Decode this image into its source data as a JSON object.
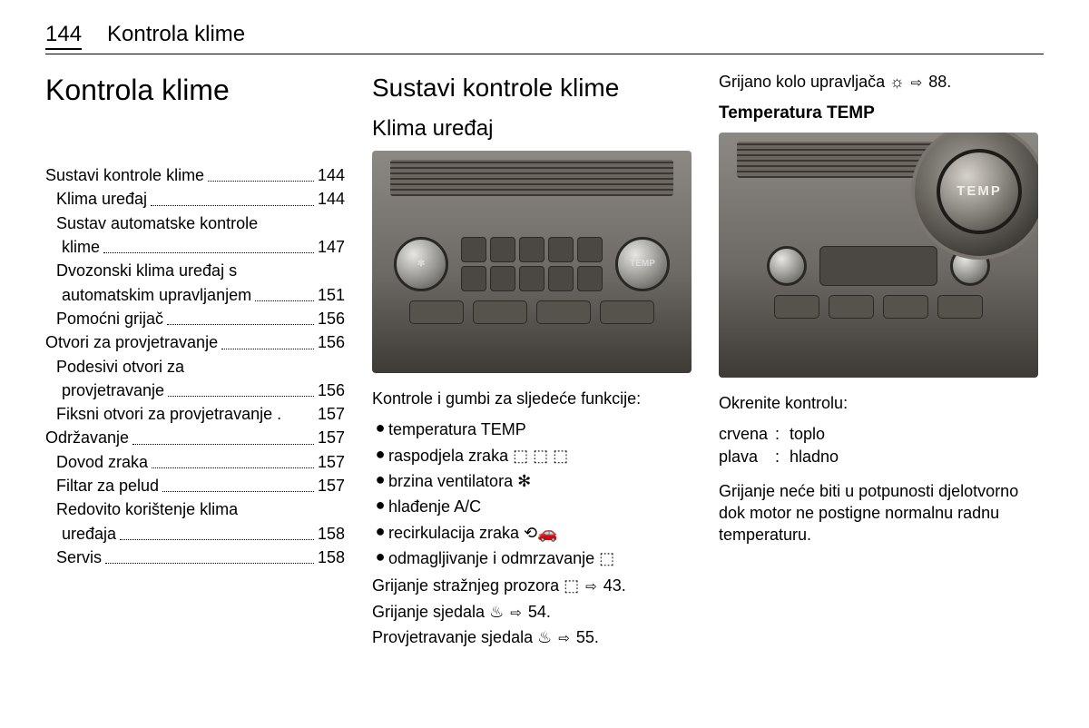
{
  "header": {
    "page_number": "144",
    "section": "Kontrola klime"
  },
  "col1": {
    "title": "Kontrola klime",
    "toc": [
      {
        "type": "main",
        "label": "Sustavi kontrole klime",
        "page": "144"
      },
      {
        "type": "sub",
        "label": "Klima uređaj",
        "page": "144"
      },
      {
        "type": "sub",
        "label": "Sustav automatske kontrole",
        "label2": "klime",
        "page": "147"
      },
      {
        "type": "sub",
        "label": "Dvozonski klima uređaj s",
        "label2": "automatskim upravljanjem",
        "page": "151"
      },
      {
        "type": "sub",
        "label": "Pomoćni grijač",
        "page": "156"
      },
      {
        "type": "main",
        "label": "Otvori za provjetravanje",
        "page": "156"
      },
      {
        "type": "sub",
        "label": "Podesivi otvori za",
        "label2": "provjetravanje",
        "page": "156"
      },
      {
        "type": "sub",
        "label": "Fiksni otvori za provjetravanje",
        "page": "157",
        "tight": true
      },
      {
        "type": "main",
        "label": "Održavanje",
        "page": "157"
      },
      {
        "type": "sub",
        "label": "Dovod zraka",
        "page": "157"
      },
      {
        "type": "sub",
        "label": "Filtar za pelud",
        "page": "157"
      },
      {
        "type": "sub",
        "label": "Redovito korištenje klima",
        "label2": "uređaja",
        "page": "158"
      },
      {
        "type": "sub",
        "label": "Servis",
        "page": "158"
      }
    ]
  },
  "col2": {
    "title": "Sustavi kontrole klime",
    "subtitle": "Klima uređaj",
    "intro": "Kontrole i gumbi za sljedeće funkcije:",
    "bullets": [
      {
        "text": "temperatura TEMP",
        "icon": ""
      },
      {
        "text": "raspodjela zraka",
        "icon": "⬚ ⬚ ⬚"
      },
      {
        "text": "brzina ventilatora",
        "icon": "✻"
      },
      {
        "text": "hlađenje A/C",
        "icon": ""
      },
      {
        "text": "recirkulacija zraka",
        "icon": "⟲🚗"
      },
      {
        "text": "odmagljivanje i odmrzavanje",
        "icon": "⬚"
      }
    ],
    "refs": [
      {
        "pre": "Grijanje stražnjeg prozora",
        "icon": "⬚",
        "page": "43"
      },
      {
        "pre": "Grijanje sjedala",
        "icon": "♨",
        "page": "54"
      },
      {
        "pre": "Provjetravanje sjedala",
        "icon": "♨",
        "page": "55"
      }
    ]
  },
  "col3": {
    "topline": {
      "pre": "Grijano kolo upravljača",
      "icon": "☼",
      "page": "88"
    },
    "heading": "Temperatura TEMP",
    "knob_label": "TEMP",
    "turn_label": "Okrenite kontrolu:",
    "defs": [
      {
        "key": "crvena",
        "val": "toplo"
      },
      {
        "key": "plava",
        "val": "hladno"
      }
    ],
    "note": "Grijanje neće biti u potpunosti djelotvorno dok motor ne postigne normalnu radnu temperaturu."
  }
}
